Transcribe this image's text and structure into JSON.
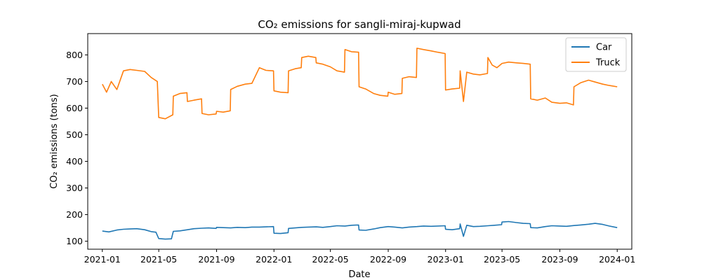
{
  "chart_data": {
    "type": "line",
    "title": "CO₂ emissions for sangli-miraj-kupwad",
    "xlabel": "Date",
    "ylabel": "CO₂ emissions (tons)",
    "xlim": [
      "2020-12-01",
      "2024-02-01"
    ],
    "ylim": [
      70,
      880
    ],
    "x_ticks": [
      "2021-01-01",
      "2021-05-01",
      "2021-09-01",
      "2022-01-01",
      "2022-05-01",
      "2022-09-01",
      "2023-01-01",
      "2023-05-01",
      "2023-09-01",
      "2024-01-01"
    ],
    "x_tick_labels": [
      "2021-01",
      "2021-05",
      "2021-09",
      "2022-01",
      "2022-05",
      "2022-09",
      "2023-01",
      "2023-05",
      "2023-09",
      "2024-01"
    ],
    "y_ticks": [
      100,
      200,
      300,
      400,
      500,
      600,
      700,
      800
    ],
    "legend_position": "top-right",
    "grid": false,
    "series": [
      {
        "name": "Car",
        "color": "#1f77b4",
        "points": [
          [
            "2021-01-01",
            138
          ],
          [
            "2021-01-15",
            135
          ],
          [
            "2021-02-01",
            142
          ],
          [
            "2021-02-15",
            145
          ],
          [
            "2021-03-01",
            146
          ],
          [
            "2021-03-15",
            147
          ],
          [
            "2021-04-01",
            143
          ],
          [
            "2021-04-15",
            136
          ],
          [
            "2021-04-25",
            134
          ],
          [
            "2021-05-01",
            110
          ],
          [
            "2021-05-15",
            108
          ],
          [
            "2021-05-28",
            109
          ],
          [
            "2021-06-01",
            137
          ],
          [
            "2021-06-15",
            139
          ],
          [
            "2021-07-01",
            143
          ],
          [
            "2021-07-15",
            147
          ],
          [
            "2021-08-01",
            149
          ],
          [
            "2021-08-15",
            150
          ],
          [
            "2021-08-31",
            148
          ],
          [
            "2021-09-01",
            152
          ],
          [
            "2021-09-15",
            151
          ],
          [
            "2021-10-01",
            150
          ],
          [
            "2021-10-15",
            152
          ],
          [
            "2021-11-01",
            151
          ],
          [
            "2021-11-15",
            153
          ],
          [
            "2021-12-01",
            153
          ],
          [
            "2021-12-31",
            155
          ],
          [
            "2022-01-01",
            130
          ],
          [
            "2022-01-15",
            129
          ],
          [
            "2022-01-31",
            132
          ],
          [
            "2022-02-01",
            148
          ],
          [
            "2022-02-15",
            150
          ],
          [
            "2022-03-01",
            152
          ],
          [
            "2022-03-15",
            153
          ],
          [
            "2022-04-01",
            154
          ],
          [
            "2022-04-15",
            152
          ],
          [
            "2022-05-01",
            155
          ],
          [
            "2022-05-15",
            158
          ],
          [
            "2022-06-01",
            157
          ],
          [
            "2022-06-15",
            160
          ],
          [
            "2022-06-30",
            161
          ],
          [
            "2022-07-01",
            142
          ],
          [
            "2022-07-15",
            141
          ],
          [
            "2022-08-01",
            146
          ],
          [
            "2022-08-15",
            151
          ],
          [
            "2022-09-01",
            155
          ],
          [
            "2022-09-15",
            153
          ],
          [
            "2022-10-01",
            150
          ],
          [
            "2022-10-15",
            153
          ],
          [
            "2022-11-01",
            155
          ],
          [
            "2022-11-15",
            157
          ],
          [
            "2022-12-01",
            156
          ],
          [
            "2022-12-31",
            158
          ],
          [
            "2023-01-01",
            145
          ],
          [
            "2023-01-15",
            143
          ],
          [
            "2023-01-31",
            147
          ],
          [
            "2023-02-01",
            165
          ],
          [
            "2023-02-08",
            118
          ],
          [
            "2023-02-15",
            160
          ],
          [
            "2023-03-01",
            155
          ],
          [
            "2023-03-15",
            156
          ],
          [
            "2023-04-01",
            158
          ],
          [
            "2023-04-15",
            160
          ],
          [
            "2023-04-30",
            162
          ],
          [
            "2023-05-01",
            172
          ],
          [
            "2023-05-15",
            174
          ],
          [
            "2023-06-01",
            170
          ],
          [
            "2023-06-15",
            167
          ],
          [
            "2023-06-30",
            166
          ],
          [
            "2023-07-01",
            151
          ],
          [
            "2023-07-15",
            150
          ],
          [
            "2023-08-01",
            155
          ],
          [
            "2023-08-15",
            158
          ],
          [
            "2023-09-01",
            157
          ],
          [
            "2023-09-15",
            156
          ],
          [
            "2023-10-01",
            159
          ],
          [
            "2023-10-15",
            161
          ],
          [
            "2023-11-01",
            164
          ],
          [
            "2023-11-15",
            167
          ],
          [
            "2023-12-01",
            163
          ],
          [
            "2023-12-15",
            157
          ],
          [
            "2024-01-01",
            151
          ]
        ]
      },
      {
        "name": "Truck",
        "color": "#ff7f0e",
        "points": [
          [
            "2021-01-01",
            690
          ],
          [
            "2021-01-10",
            660
          ],
          [
            "2021-01-20",
            700
          ],
          [
            "2021-02-01",
            670
          ],
          [
            "2021-02-15",
            740
          ],
          [
            "2021-03-01",
            745
          ],
          [
            "2021-03-15",
            742
          ],
          [
            "2021-04-01",
            738
          ],
          [
            "2021-04-15",
            715
          ],
          [
            "2021-04-28",
            700
          ],
          [
            "2021-05-01",
            565
          ],
          [
            "2021-05-15",
            560
          ],
          [
            "2021-05-31",
            575
          ],
          [
            "2021-06-01",
            645
          ],
          [
            "2021-06-15",
            655
          ],
          [
            "2021-06-30",
            658
          ],
          [
            "2021-07-01",
            625
          ],
          [
            "2021-07-15",
            630
          ],
          [
            "2021-07-31",
            635
          ],
          [
            "2021-08-01",
            580
          ],
          [
            "2021-08-15",
            575
          ],
          [
            "2021-08-31",
            578
          ],
          [
            "2021-09-01",
            588
          ],
          [
            "2021-09-15",
            585
          ],
          [
            "2021-09-30",
            590
          ],
          [
            "2021-10-01",
            670
          ],
          [
            "2021-10-15",
            682
          ],
          [
            "2021-11-01",
            690
          ],
          [
            "2021-11-15",
            693
          ],
          [
            "2021-12-01",
            752
          ],
          [
            "2021-12-15",
            742
          ],
          [
            "2021-12-31",
            740
          ],
          [
            "2022-01-01",
            665
          ],
          [
            "2022-01-15",
            660
          ],
          [
            "2022-01-31",
            658
          ],
          [
            "2022-02-01",
            740
          ],
          [
            "2022-02-15",
            748
          ],
          [
            "2022-02-28",
            752
          ],
          [
            "2022-03-01",
            790
          ],
          [
            "2022-03-15",
            795
          ],
          [
            "2022-03-31",
            790
          ],
          [
            "2022-04-01",
            770
          ],
          [
            "2022-04-15",
            765
          ],
          [
            "2022-05-01",
            755
          ],
          [
            "2022-05-15",
            740
          ],
          [
            "2022-05-31",
            735
          ],
          [
            "2022-06-01",
            820
          ],
          [
            "2022-06-15",
            812
          ],
          [
            "2022-06-30",
            810
          ],
          [
            "2022-07-01",
            680
          ],
          [
            "2022-07-15",
            672
          ],
          [
            "2022-08-01",
            655
          ],
          [
            "2022-08-15",
            648
          ],
          [
            "2022-08-31",
            645
          ],
          [
            "2022-09-01",
            660
          ],
          [
            "2022-09-15",
            652
          ],
          [
            "2022-09-30",
            655
          ],
          [
            "2022-10-01",
            712
          ],
          [
            "2022-10-15",
            718
          ],
          [
            "2022-10-31",
            715
          ],
          [
            "2022-11-01",
            825
          ],
          [
            "2022-11-15",
            820
          ],
          [
            "2022-12-01",
            815
          ],
          [
            "2022-12-15",
            810
          ],
          [
            "2022-12-31",
            805
          ],
          [
            "2023-01-01",
            668
          ],
          [
            "2023-01-15",
            672
          ],
          [
            "2023-01-31",
            675
          ],
          [
            "2023-02-01",
            740
          ],
          [
            "2023-02-08",
            625
          ],
          [
            "2023-02-15",
            735
          ],
          [
            "2023-03-01",
            728
          ],
          [
            "2023-03-15",
            725
          ],
          [
            "2023-03-31",
            730
          ],
          [
            "2023-04-01",
            790
          ],
          [
            "2023-04-10",
            762
          ],
          [
            "2023-04-20",
            752
          ],
          [
            "2023-05-01",
            768
          ],
          [
            "2023-05-15",
            773
          ],
          [
            "2023-06-01",
            770
          ],
          [
            "2023-06-15",
            768
          ],
          [
            "2023-06-30",
            765
          ],
          [
            "2023-07-01",
            635
          ],
          [
            "2023-07-15",
            630
          ],
          [
            "2023-08-01",
            638
          ],
          [
            "2023-08-15",
            622
          ],
          [
            "2023-09-01",
            618
          ],
          [
            "2023-09-15",
            620
          ],
          [
            "2023-09-30",
            612
          ],
          [
            "2023-10-01",
            680
          ],
          [
            "2023-10-15",
            695
          ],
          [
            "2023-11-01",
            705
          ],
          [
            "2023-11-15",
            698
          ],
          [
            "2023-12-01",
            690
          ],
          [
            "2023-12-15",
            685
          ],
          [
            "2024-01-01",
            680
          ]
        ]
      }
    ]
  }
}
